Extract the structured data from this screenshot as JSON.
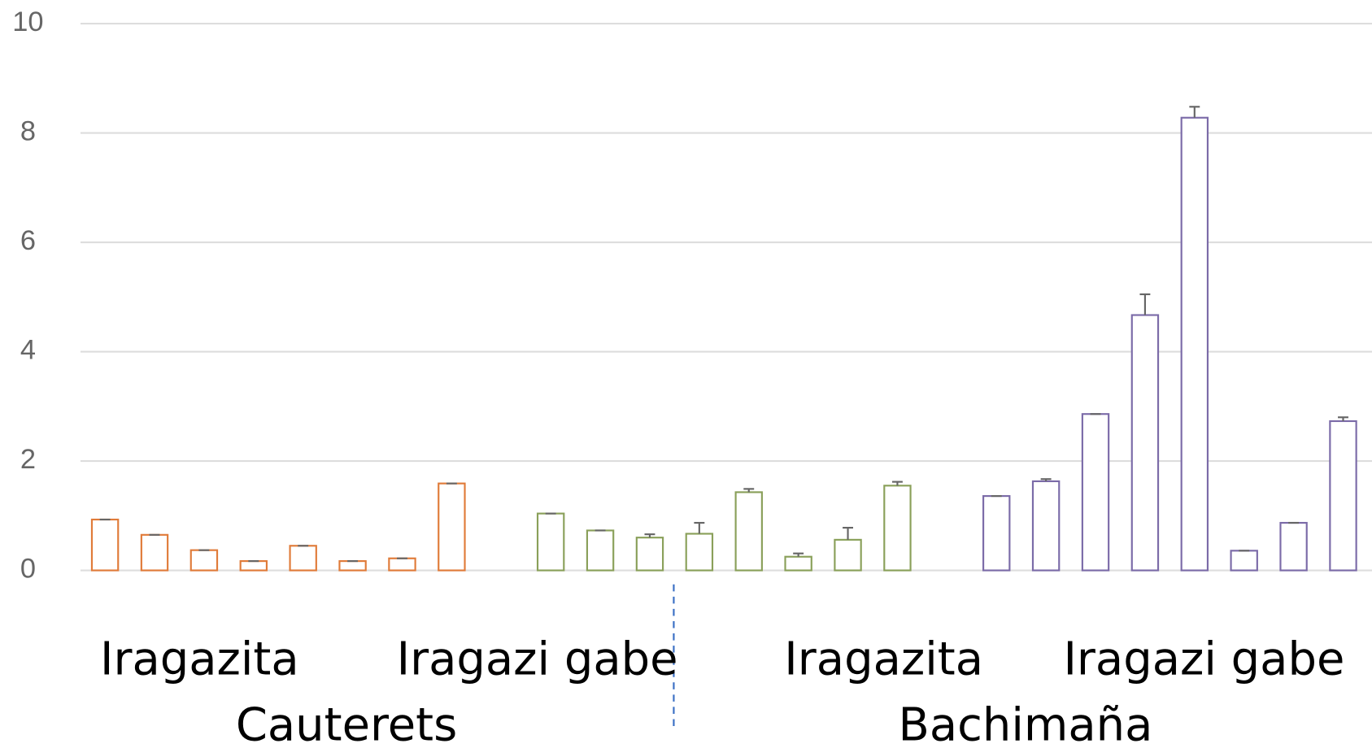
{
  "chart_data": {
    "type": "bar",
    "ylim": [
      0,
      10
    ],
    "yticks": [
      0,
      2,
      4,
      6,
      8,
      10
    ],
    "grid": true,
    "series": [
      {
        "color": "#e07b39",
        "values": [
          0.93,
          0.65,
          0.37,
          0.17,
          0.45,
          0.17,
          0.22,
          1.59
        ],
        "errors": [
          0,
          0,
          0,
          0,
          0,
          0,
          0,
          0
        ]
      },
      {
        "color": "#8aa05a",
        "values": [
          1.04,
          0.73,
          0.6,
          0.67,
          1.43,
          0.25,
          0.56,
          1.55
        ],
        "errors": [
          0,
          0,
          0.06,
          0.2,
          0.06,
          0.06,
          0.22,
          0.07
        ]
      },
      {
        "color": "#7b6ba8",
        "values": [
          1.36,
          1.63,
          2.86,
          4.67,
          8.28,
          0.36,
          0.87,
          2.73
        ],
        "errors": [
          0,
          0.04,
          0,
          0.38,
          0.2,
          0,
          0,
          0.07
        ]
      }
    ],
    "group_labels": [
      "Iragazita",
      "Iragazi gabe",
      "Iragazita",
      "Iragazi gabe"
    ],
    "site_labels": [
      "Cauterets",
      "Bachimaña"
    ]
  }
}
